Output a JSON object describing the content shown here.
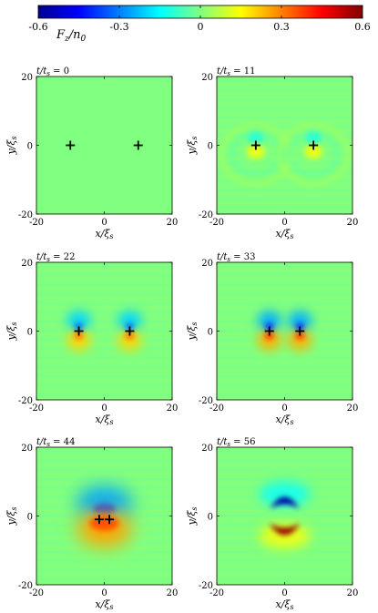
{
  "colorbar": {
    "label": "F_z/n_0",
    "label_main": "F",
    "label_sub": "z",
    "label_den": "/n",
    "label_den_sub": "0",
    "ticks": [
      "-0.6",
      "-0.3",
      "0",
      "0.3",
      "0.6"
    ],
    "range": [
      -0.6,
      0.6
    ],
    "colormap": [
      "#00008f",
      "#0000ff",
      "#0080ff",
      "#00ffff",
      "#80ff80",
      "#ffff00",
      "#ff8000",
      "#ff0000",
      "#800000"
    ]
  },
  "chart_data": [
    {
      "type": "heatmap",
      "title": "t/t_s = 0",
      "title_text": "t/t",
      "title_sub": "s",
      "title_value": " = 0",
      "xlabel": "x/ξ_s",
      "ylabel": "y/ξ_s",
      "xlim": [
        -20,
        20
      ],
      "ylim": [
        -20,
        20
      ],
      "xticks": [
        "-20",
        "0",
        "20"
      ],
      "yticks": [
        "-20",
        "0",
        "20"
      ],
      "vortices": [
        {
          "x": -10,
          "y": 0
        },
        {
          "x": 10,
          "y": 0
        }
      ],
      "field_pattern": "uniform",
      "amplitude": 0.0
    },
    {
      "type": "heatmap",
      "title": "t/t_s = 11",
      "title_text": "t/t",
      "title_sub": "s",
      "title_value": " = 11",
      "xlabel": "x/ξ_s",
      "ylabel": "y/ξ_s",
      "xlim": [
        -20,
        20
      ],
      "ylim": [
        -20,
        20
      ],
      "xticks": [
        "-20",
        "0",
        "20"
      ],
      "yticks": [
        "-20",
        "0",
        "20"
      ],
      "vortices": [
        {
          "x": -8.5,
          "y": 0
        },
        {
          "x": 8.5,
          "y": 0
        }
      ],
      "field_pattern": "rings",
      "amplitude": 0.08
    },
    {
      "type": "heatmap",
      "title": "t/t_s = 22",
      "title_text": "t/t",
      "title_sub": "s",
      "title_value": " = 22",
      "xlabel": "x/ξ_s",
      "ylabel": "y/ξ_s",
      "xlim": [
        -20,
        20
      ],
      "ylim": [
        -20,
        20
      ],
      "xticks": [
        "-20",
        "0",
        "20"
      ],
      "yticks": [
        "-20",
        "0",
        "20"
      ],
      "vortices": [
        {
          "x": -7.5,
          "y": 0
        },
        {
          "x": 7.5,
          "y": 0
        }
      ],
      "field_pattern": "dipoles",
      "amplitude": 0.18
    },
    {
      "type": "heatmap",
      "title": "t/t_s = 33",
      "title_text": "t/t",
      "title_sub": "s",
      "title_value": " = 33",
      "xlabel": "x/ξ_s",
      "ylabel": "y/ξ_s",
      "xlim": [
        -20,
        20
      ],
      "ylim": [
        -20,
        20
      ],
      "xticks": [
        "-20",
        "0",
        "20"
      ],
      "yticks": [
        "-20",
        "0",
        "20"
      ],
      "vortices": [
        {
          "x": -4.5,
          "y": 0
        },
        {
          "x": 4.5,
          "y": 0
        }
      ],
      "field_pattern": "dipoles",
      "amplitude": 0.22
    },
    {
      "type": "heatmap",
      "title": "t/t_s = 44",
      "title_text": "t/t",
      "title_sub": "s",
      "title_value": " = 44",
      "xlabel": "x/ξ_s",
      "ylabel": "y/ξ_s",
      "xlim": [
        -20,
        20
      ],
      "ylim": [
        -20,
        20
      ],
      "xticks": [
        "-20",
        "0",
        "20"
      ],
      "yticks": [
        "-20",
        "0",
        "20"
      ],
      "vortices": [
        {
          "x": -1.5,
          "y": -1
        },
        {
          "x": 1.5,
          "y": -1
        }
      ],
      "field_pattern": "merged",
      "amplitude": 0.32
    },
    {
      "type": "heatmap",
      "title": "t/t_s = 56",
      "title_text": "t/t",
      "title_sub": "s",
      "title_value": " = 56",
      "xlabel": "x/ξ_s",
      "ylabel": "y/ξ_s",
      "xlim": [
        -20,
        20
      ],
      "ylim": [
        -20,
        20
      ],
      "xticks": [
        "-20",
        "0",
        "20"
      ],
      "yticks": [
        "-20",
        "0",
        "20"
      ],
      "vortices": [],
      "field_pattern": "crescents",
      "amplitude": 0.6
    }
  ],
  "axis_text": {
    "x_main": "x/ξ",
    "x_sub": "s",
    "y_main": "y/ξ",
    "y_sub": "s"
  }
}
